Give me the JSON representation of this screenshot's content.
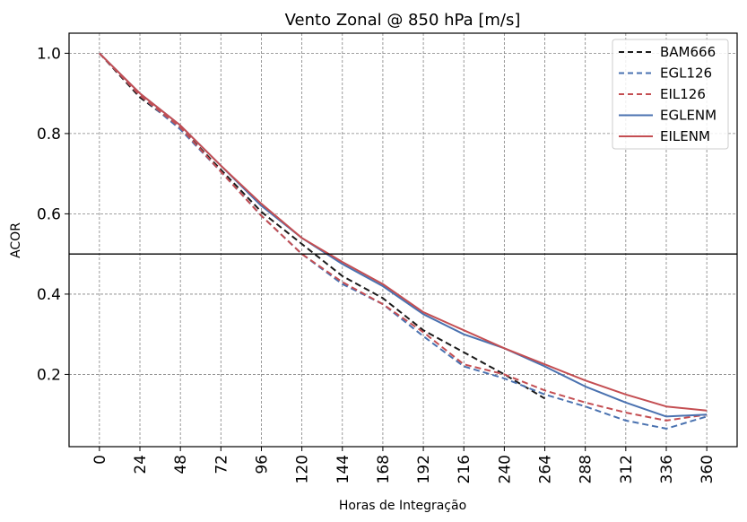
{
  "chart_data": {
    "type": "line",
    "title": "Vento Zonal @ 850 hPa [m/s]",
    "xlabel": "Horas de Integração",
    "ylabel": "ACOR",
    "x": [
      0,
      24,
      48,
      72,
      96,
      120,
      144,
      168,
      192,
      216,
      240,
      264,
      288,
      312,
      336,
      360
    ],
    "xlim": [
      -18,
      378
    ],
    "ylim": [
      0.02,
      1.05
    ],
    "yticks": [
      0.2,
      0.4,
      0.6,
      0.8,
      1.0
    ],
    "ytick_labels": [
      "0.2",
      "0.4",
      "0.6",
      "0.8",
      "1.0"
    ],
    "xtick_labels": [
      "0",
      "24",
      "48",
      "72",
      "96",
      "120",
      "144",
      "168",
      "192",
      "216",
      "240",
      "264",
      "288",
      "312",
      "336",
      "360"
    ],
    "reference_line": 0.5,
    "grid": true,
    "legend_position": "top-right",
    "series": [
      {
        "name": "BAM666",
        "color": "#1a1a1a",
        "dashed": true,
        "values": [
          1.0,
          0.89,
          0.815,
          0.71,
          0.605,
          0.525,
          0.445,
          0.39,
          0.31,
          0.255,
          0.2,
          0.14,
          null,
          null,
          null,
          null
        ]
      },
      {
        "name": "EGL126",
        "color": "#4a72b0",
        "dashed": true,
        "values": [
          1.0,
          0.895,
          0.81,
          0.705,
          0.595,
          0.5,
          0.425,
          0.375,
          0.295,
          0.22,
          0.19,
          0.15,
          0.12,
          0.085,
          0.065,
          0.095
        ]
      },
      {
        "name": "EIL126",
        "color": "#c44e52",
        "dashed": true,
        "values": [
          1.0,
          0.895,
          0.815,
          0.705,
          0.595,
          0.5,
          0.43,
          0.375,
          0.305,
          0.225,
          0.2,
          0.16,
          0.13,
          0.105,
          0.085,
          0.1
        ]
      },
      {
        "name": "EGLENM",
        "color": "#4a72b0",
        "dashed": false,
        "values": [
          1.0,
          0.9,
          0.82,
          0.72,
          0.62,
          0.54,
          0.475,
          0.42,
          0.35,
          0.3,
          0.265,
          0.22,
          0.17,
          0.13,
          0.095,
          0.1
        ]
      },
      {
        "name": "EILENM",
        "color": "#c44e52",
        "dashed": false,
        "values": [
          1.0,
          0.9,
          0.82,
          0.72,
          0.625,
          0.54,
          0.48,
          0.425,
          0.355,
          0.31,
          0.265,
          0.225,
          0.185,
          0.15,
          0.12,
          0.11
        ]
      }
    ]
  }
}
